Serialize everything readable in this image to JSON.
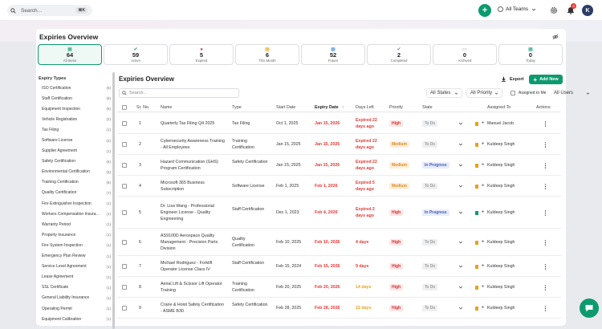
{
  "topbar": {
    "search_placeholder": "Search...",
    "shortcut": "⌘K",
    "teams_label": "All Teams",
    "notifications_count": "3",
    "avatar_initial": "K",
    "accent": "#0d9a6e"
  },
  "overview": {
    "title": "Expiries Overview",
    "stats": [
      {
        "value": "64",
        "label": "All Items",
        "icon": "calendar-icon",
        "color": "#0d9a6e"
      },
      {
        "value": "59",
        "label": "Active",
        "icon": "check-icon",
        "color": "#0d9a6e"
      },
      {
        "value": "5",
        "label": "Expired",
        "icon": "alert-icon",
        "color": "#e53935"
      },
      {
        "value": "6",
        "label": "This Month",
        "icon": "calendar-icon",
        "color": "#e8a11a"
      },
      {
        "value": "52",
        "label": "Future",
        "icon": "calendar-icon",
        "color": "#3f8bd8"
      },
      {
        "value": "2",
        "label": "Completed",
        "icon": "check-icon",
        "color": "#8a63d2"
      },
      {
        "value": "0",
        "label": "Archived",
        "icon": "archive-icon",
        "color": "#888888"
      },
      {
        "value": "0",
        "label": "Today",
        "icon": "calendar-icon",
        "color": "#0d9a6e"
      }
    ]
  },
  "sidebar": {
    "heading": "Expiry Types",
    "items": [
      {
        "label": "ISO Certification",
        "count": "(6)"
      },
      {
        "label": "Staff Certification",
        "count": "(8)"
      },
      {
        "label": "Equipment Inspection",
        "count": "(5)"
      },
      {
        "label": "Vehicle Registration",
        "count": "(2)"
      },
      {
        "label": "Tax Filing",
        "count": "(1)"
      },
      {
        "label": "Software License",
        "count": "(2)"
      },
      {
        "label": "Supplier Agreement",
        "count": "(1)"
      },
      {
        "label": "Safety Certification",
        "count": "(6)"
      },
      {
        "label": "Environmental Certification",
        "count": "(5)"
      },
      {
        "label": "Training Certification",
        "count": "(8)"
      },
      {
        "label": "Quality Certification",
        "count": "(7)"
      },
      {
        "label": "Fire Extinguisher Inspection",
        "count": "(1)"
      },
      {
        "label": "Workers Compensation Insura...",
        "count": "(1)"
      },
      {
        "label": "Warranty Period",
        "count": "(1)"
      },
      {
        "label": "Property Insurance",
        "count": "(1)"
      },
      {
        "label": "Fire System Inspection",
        "count": "(1)"
      },
      {
        "label": "Emergency Plan Review",
        "count": "(1)"
      },
      {
        "label": "Service Level Agreement",
        "count": "(1)"
      },
      {
        "label": "Lease Agreement",
        "count": "(1)"
      },
      {
        "label": "SSL Certificate",
        "count": "(1)"
      },
      {
        "label": "General Liability Insurance",
        "count": "(1)"
      },
      {
        "label": "Operating Permit",
        "count": "(1)"
      },
      {
        "label": "Equipment Calibration",
        "count": "(1)"
      }
    ]
  },
  "main": {
    "title": "Expiries Overview",
    "export_label": "Export",
    "add_label": "Add New",
    "search_placeholder": "Search...",
    "states_label": "All States",
    "priority_label": "All Priority",
    "assigned_label": "Assigned to Me",
    "users_label": "All Users",
    "columns": [
      "Sr. No.",
      "Name",
      "Type",
      "Start Date",
      "Expiry Date",
      "Days Left",
      "Priority",
      "State",
      "Assigned To",
      "Actions"
    ],
    "rows": [
      {
        "sr": "1",
        "name": "Quarterly Tax Filing Q4 2025",
        "type": "Tax Filing",
        "start": "Oct 1, 2025",
        "expiry": "Jan 15, 2026",
        "days": "Expired 22 days ago",
        "priority": "High",
        "state": "To Do",
        "assigned": "Manuel Jacob",
        "flag": "#e8a11a"
      },
      {
        "sr": "2",
        "name": "Cybersecurity Awareness Training - All Employees",
        "type": "Training Certification",
        "start": "Jan 15, 2025",
        "expiry": "Jan 15, 2026",
        "days": "Expired 22 days ago",
        "priority": "Medium",
        "state": "To Do",
        "assigned": "Kuldeep Singh",
        "flag": "#e8a11a"
      },
      {
        "sr": "3",
        "name": "Hazard Communication (GHS) Program Certification",
        "type": "Safety Certification",
        "start": "Jan 15, 2025",
        "expiry": "Jan 15, 2026",
        "days": "Expired 22 days ago",
        "priority": "Medium",
        "state": "In Progress",
        "assigned": "Kuldeep Singh",
        "flag": "#e8a11a"
      },
      {
        "sr": "4",
        "name": "Microsoft 365 Business Subscription",
        "type": "Software License",
        "start": "Feb 1, 2025",
        "expiry": "Feb 1, 2026",
        "days": "Expired 5 days ago",
        "priority": "Medium",
        "state": "To Do",
        "assigned": "Kuldeep Singh",
        "flag": "#e8a11a"
      },
      {
        "sr": "5",
        "name": "Dr. Lisa Wang - Professional Engineer License - Quality Engineering",
        "type": "Staff Certification",
        "start": "Dec 1, 2023",
        "expiry": "Feb 4, 2026",
        "days": "Expired 2 days ago",
        "priority": "High",
        "state": "In Progress",
        "assigned": "Kuldeep Singh",
        "flag": "#0d9a6e"
      },
      {
        "sr": "6",
        "name": "AS9100D Aerospace Quality Management - Precision Parts Division",
        "type": "Quality Certification",
        "start": "Feb 10, 2025",
        "expiry": "Feb 10, 2026",
        "days": "4 days",
        "priority": "High",
        "state": "To Do",
        "assigned": "Kuldeep Singh",
        "flag": "#e8a11a"
      },
      {
        "sr": "7",
        "name": "Michael Rodriguez - Forklift Operator License Class IV",
        "type": "Staff Certification",
        "start": "Feb 15, 2024",
        "expiry": "Feb 15, 2026",
        "days": "9 days",
        "priority": "High",
        "state": "To Do",
        "assigned": "Kuldeep Singh",
        "flag": "#e8a11a"
      },
      {
        "sr": "8",
        "name": "Aerial Lift & Scissor Lift Operator Training",
        "type": "Training Certification",
        "start": "Feb 20, 2025",
        "expiry": "Feb 20, 2026",
        "days": "14 days",
        "priority": "High",
        "state": "To Do",
        "assigned": "Kuldeep Singh",
        "flag": "#e8a11a"
      },
      {
        "sr": "9",
        "name": "Crane & Hoist Safety Certification - ASME B30",
        "type": "Safety Certification",
        "start": "Feb 28, 2025",
        "expiry": "Feb 28, 2026",
        "days": "22 days",
        "priority": "High",
        "state": "To Do",
        "assigned": "Kuldeep Singh",
        "flag": "#e8a11a"
      }
    ]
  }
}
